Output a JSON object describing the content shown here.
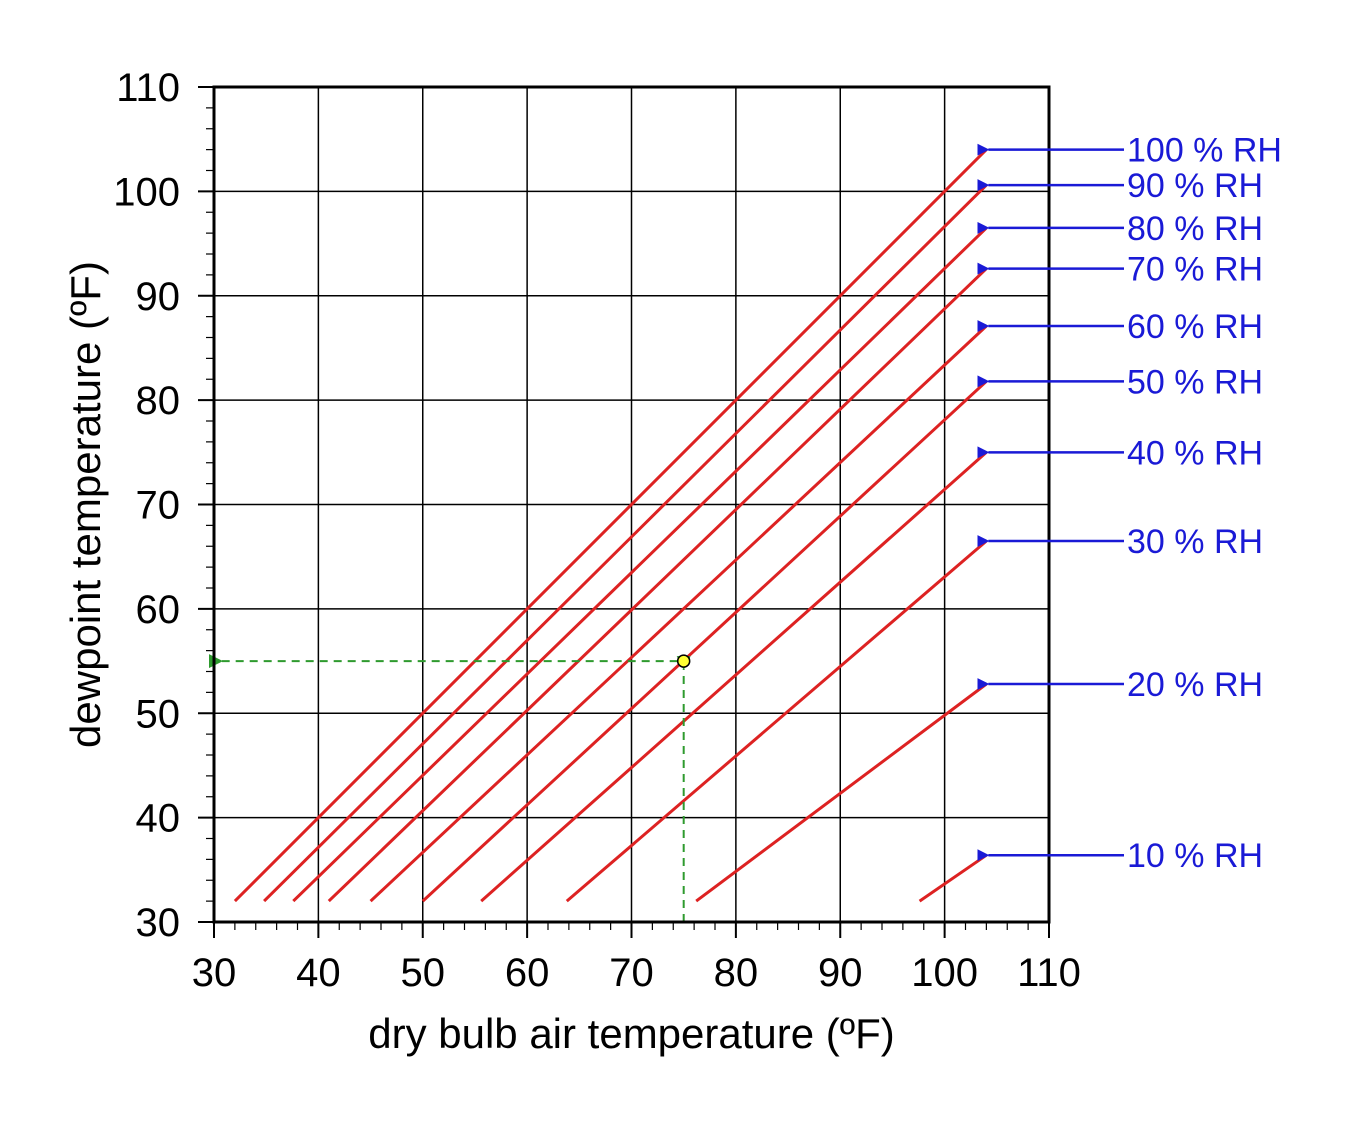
{
  "chart_data": {
    "type": "line",
    "title": "",
    "xlabel": "dry bulb air temperature (ºF)",
    "ylabel": "dewpoint temperature (ºF)",
    "xlim": [
      30,
      110
    ],
    "ylim": [
      30,
      110
    ],
    "x_ticks": [
      "30",
      "40",
      "50",
      "60",
      "70",
      "80",
      "90",
      "100",
      "110"
    ],
    "y_ticks": [
      "30",
      "40",
      "50",
      "60",
      "70",
      "80",
      "90",
      "100",
      "110"
    ],
    "grid": true,
    "colors": {
      "curve": "#dd2222",
      "label": "#1a1ad6",
      "guide": "#2e9a2e",
      "point": "#ffff33"
    },
    "series": [
      {
        "name": "100 % RH",
        "x": [
          32,
          104
        ],
        "y": [
          32,
          104
        ]
      },
      {
        "name": "90 % RH",
        "x": [
          34.8,
          104
        ],
        "y": [
          32,
          100.6
        ]
      },
      {
        "name": "80 % RH",
        "x": [
          37.6,
          104
        ],
        "y": [
          32,
          96.5
        ]
      },
      {
        "name": "70 % RH",
        "x": [
          41,
          104
        ],
        "y": [
          32,
          92.6
        ]
      },
      {
        "name": "60 % RH",
        "x": [
          45,
          104
        ],
        "y": [
          32,
          87.1
        ]
      },
      {
        "name": "50 % RH",
        "x": [
          50,
          104
        ],
        "y": [
          32,
          81.8
        ]
      },
      {
        "name": "40 % RH",
        "x": [
          55.6,
          104
        ],
        "y": [
          32,
          75
        ]
      },
      {
        "name": "30 % RH",
        "x": [
          63.8,
          104
        ],
        "y": [
          32,
          66.5
        ]
      },
      {
        "name": "20 % RH",
        "x": [
          76.2,
          104
        ],
        "y": [
          32,
          52.8
        ]
      },
      {
        "name": "10 % RH",
        "x": [
          97.6,
          104
        ],
        "y": [
          32,
          36.4
        ]
      }
    ],
    "annotation": {
      "x": 75,
      "y": 55
    }
  }
}
